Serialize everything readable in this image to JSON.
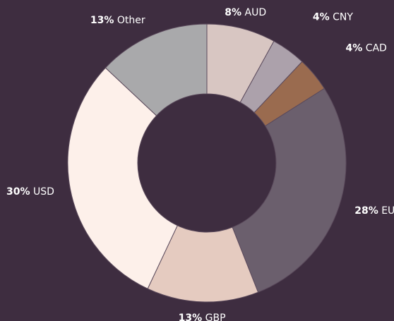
{
  "chart_data": {
    "type": "donut",
    "categories": [
      "AUD",
      "CNY",
      "CAD",
      "EUR",
      "GBP",
      "USD",
      "Other"
    ],
    "values": [
      8,
      4,
      4,
      28,
      13,
      30,
      13
    ],
    "value_labels": [
      "8%",
      "4%",
      "4%",
      "28%",
      "13%",
      "30%",
      "13%"
    ],
    "colors": [
      "#d8c6c2",
      "#aca1ab",
      "#9a6b4f",
      "#6b5f6d",
      "#e5cbc0",
      "#fdf0ea",
      "#a9a9ab"
    ]
  }
}
